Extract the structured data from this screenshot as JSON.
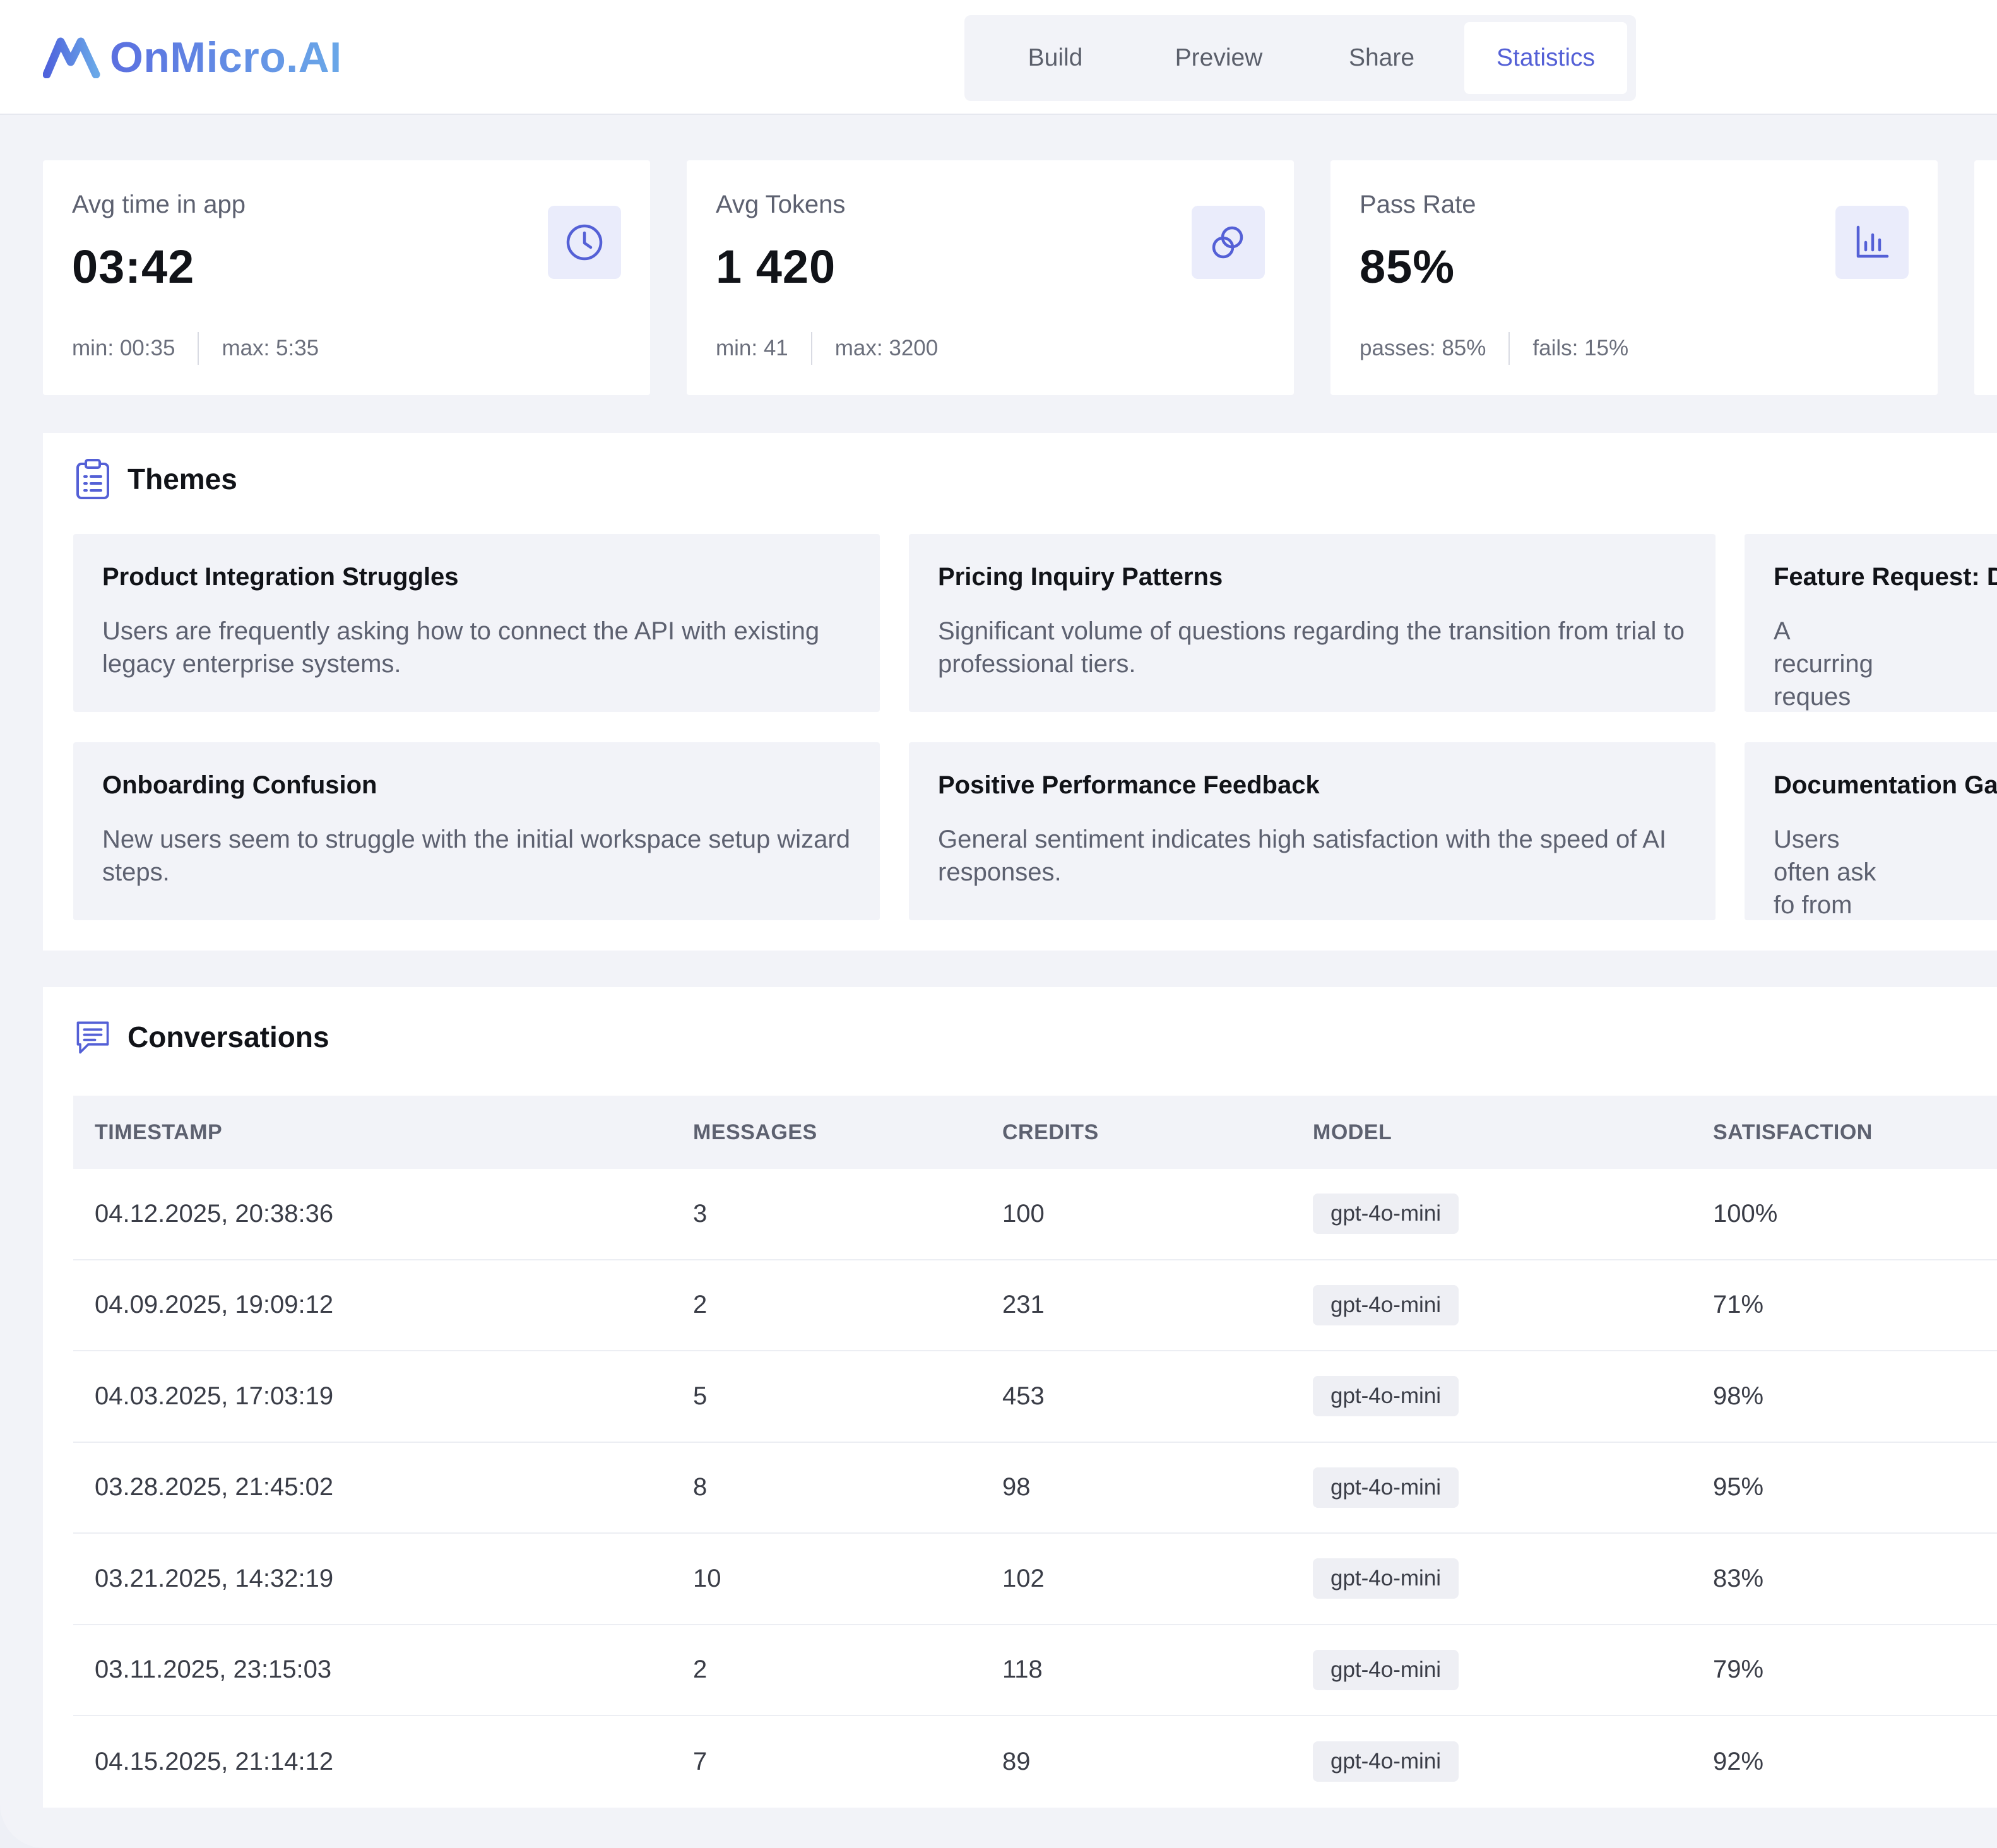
{
  "brand": {
    "name": "OnMicro.AI",
    "accent": "#5b6fe0",
    "accent_light": "#6aa8e8"
  },
  "nav": {
    "tabs": [
      {
        "label": "Build",
        "active": false
      },
      {
        "label": "Preview",
        "active": false
      },
      {
        "label": "Share",
        "active": false
      },
      {
        "label": "Statistics",
        "active": true
      }
    ],
    "active_color": "#5460d6"
  },
  "stats": [
    {
      "label": "Avg time in app",
      "value": "03:42",
      "icon": "clock-icon",
      "foot": [
        "min: 00:35",
        "max: 5:35"
      ]
    },
    {
      "label": "Avg Tokens",
      "value": "1 420",
      "icon": "tokens-icon",
      "foot": [
        "min: 41",
        "max: 3200"
      ]
    },
    {
      "label": "Pass Rate",
      "value": "85%",
      "icon": "bar-chart-icon",
      "foot": [
        "passes: 85%",
        "fails: 15%"
      ]
    }
  ],
  "themes": {
    "title": "Themes",
    "icon": "clipboard-list-icon",
    "items": [
      {
        "title": "Product Integration Struggles",
        "desc": "Users are frequently asking how to connect the API with existing legacy enterprise systems."
      },
      {
        "title": "Pricing Inquiry Patterns",
        "desc": "Significant volume of questions regarding the transition from trial to professional tiers."
      },
      {
        "title": "Feature Request: D",
        "desc": "A recurring reques dashboard screens"
      },
      {
        "title": "Onboarding Confusion",
        "desc": "New users seem to struggle with the initial workspace setup wizard steps."
      },
      {
        "title": "Positive Performance Feedback",
        "desc": "General sentiment indicates high satisfaction with the speed of AI responses."
      },
      {
        "title": "Documentation Ga",
        "desc": "Users often ask fo from the official do"
      }
    ]
  },
  "conversations": {
    "title": "Conversations",
    "icon": "chat-icon",
    "columns": [
      "TIMESTAMP",
      "MESSAGES",
      "CREDITS",
      "MODEL",
      "SATISFACTION"
    ],
    "rows": [
      {
        "timestamp": "04.12.2025, 20:38:36",
        "messages": "3",
        "credits": "100",
        "model": "gpt-4o-mini",
        "satisfaction": "100%"
      },
      {
        "timestamp": "04.09.2025, 19:09:12",
        "messages": "2",
        "credits": "231",
        "model": "gpt-4o-mini",
        "satisfaction": "71%"
      },
      {
        "timestamp": "04.03.2025, 17:03:19",
        "messages": "5",
        "credits": "453",
        "model": "gpt-4o-mini",
        "satisfaction": "98%"
      },
      {
        "timestamp": "03.28.2025, 21:45:02",
        "messages": "8",
        "credits": "98",
        "model": "gpt-4o-mini",
        "satisfaction": "95%"
      },
      {
        "timestamp": "03.21.2025, 14:32:19",
        "messages": "10",
        "credits": "102",
        "model": "gpt-4o-mini",
        "satisfaction": "83%"
      },
      {
        "timestamp": "03.11.2025, 23:15:03",
        "messages": "2",
        "credits": "118",
        "model": "gpt-4o-mini",
        "satisfaction": "79%"
      },
      {
        "timestamp": "04.15.2025, 21:14:12",
        "messages": "7",
        "credits": "89",
        "model": "gpt-4o-mini",
        "satisfaction": "92%"
      }
    ]
  }
}
